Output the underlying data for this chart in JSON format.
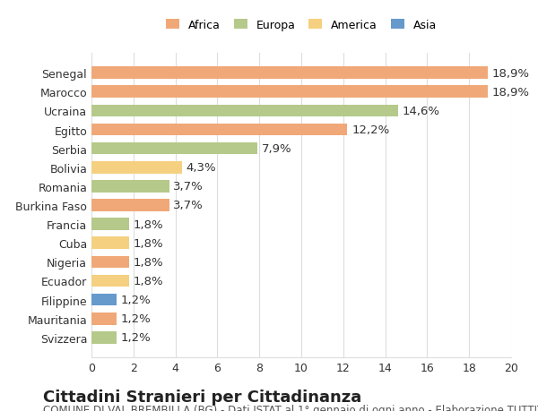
{
  "countries": [
    "Senegal",
    "Marocco",
    "Ucraina",
    "Egitto",
    "Serbia",
    "Bolivia",
    "Romania",
    "Burkina Faso",
    "Francia",
    "Cuba",
    "Nigeria",
    "Ecuador",
    "Filippine",
    "Mauritania",
    "Svizzera"
  ],
  "values": [
    18.9,
    18.9,
    14.6,
    12.2,
    7.9,
    4.3,
    3.7,
    3.7,
    1.8,
    1.8,
    1.8,
    1.8,
    1.2,
    1.2,
    1.2
  ],
  "labels": [
    "18,9%",
    "18,9%",
    "14,6%",
    "12,2%",
    "7,9%",
    "4,3%",
    "3,7%",
    "3,7%",
    "1,8%",
    "1,8%",
    "1,8%",
    "1,8%",
    "1,2%",
    "1,2%",
    "1,2%"
  ],
  "continents": [
    "Africa",
    "Africa",
    "Europa",
    "Africa",
    "Europa",
    "America",
    "Europa",
    "Africa",
    "Europa",
    "America",
    "Africa",
    "America",
    "Asia",
    "Africa",
    "Europa"
  ],
  "colors": {
    "Africa": "#F0A878",
    "Europa": "#B5C98A",
    "America": "#F5D080",
    "Asia": "#6699CC"
  },
  "legend_colors": {
    "Africa": "#F0A878",
    "Europa": "#B5C98A",
    "America": "#F5D080",
    "Asia": "#6699CC"
  },
  "xlim": [
    0,
    20
  ],
  "xticks": [
    0,
    2,
    4,
    6,
    8,
    10,
    12,
    14,
    16,
    18,
    20
  ],
  "title": "Cittadini Stranieri per Cittadinanza",
  "subtitle": "COMUNE DI VAL BREMBILLA (BG) - Dati ISTAT al 1° gennaio di ogni anno - Elaborazione TUTTITALIA.IT",
  "background_color": "#ffffff",
  "grid_color": "#dddddd",
  "bar_height": 0.65,
  "label_fontsize": 9.5,
  "tick_fontsize": 9.0,
  "title_fontsize": 13,
  "subtitle_fontsize": 8.5
}
